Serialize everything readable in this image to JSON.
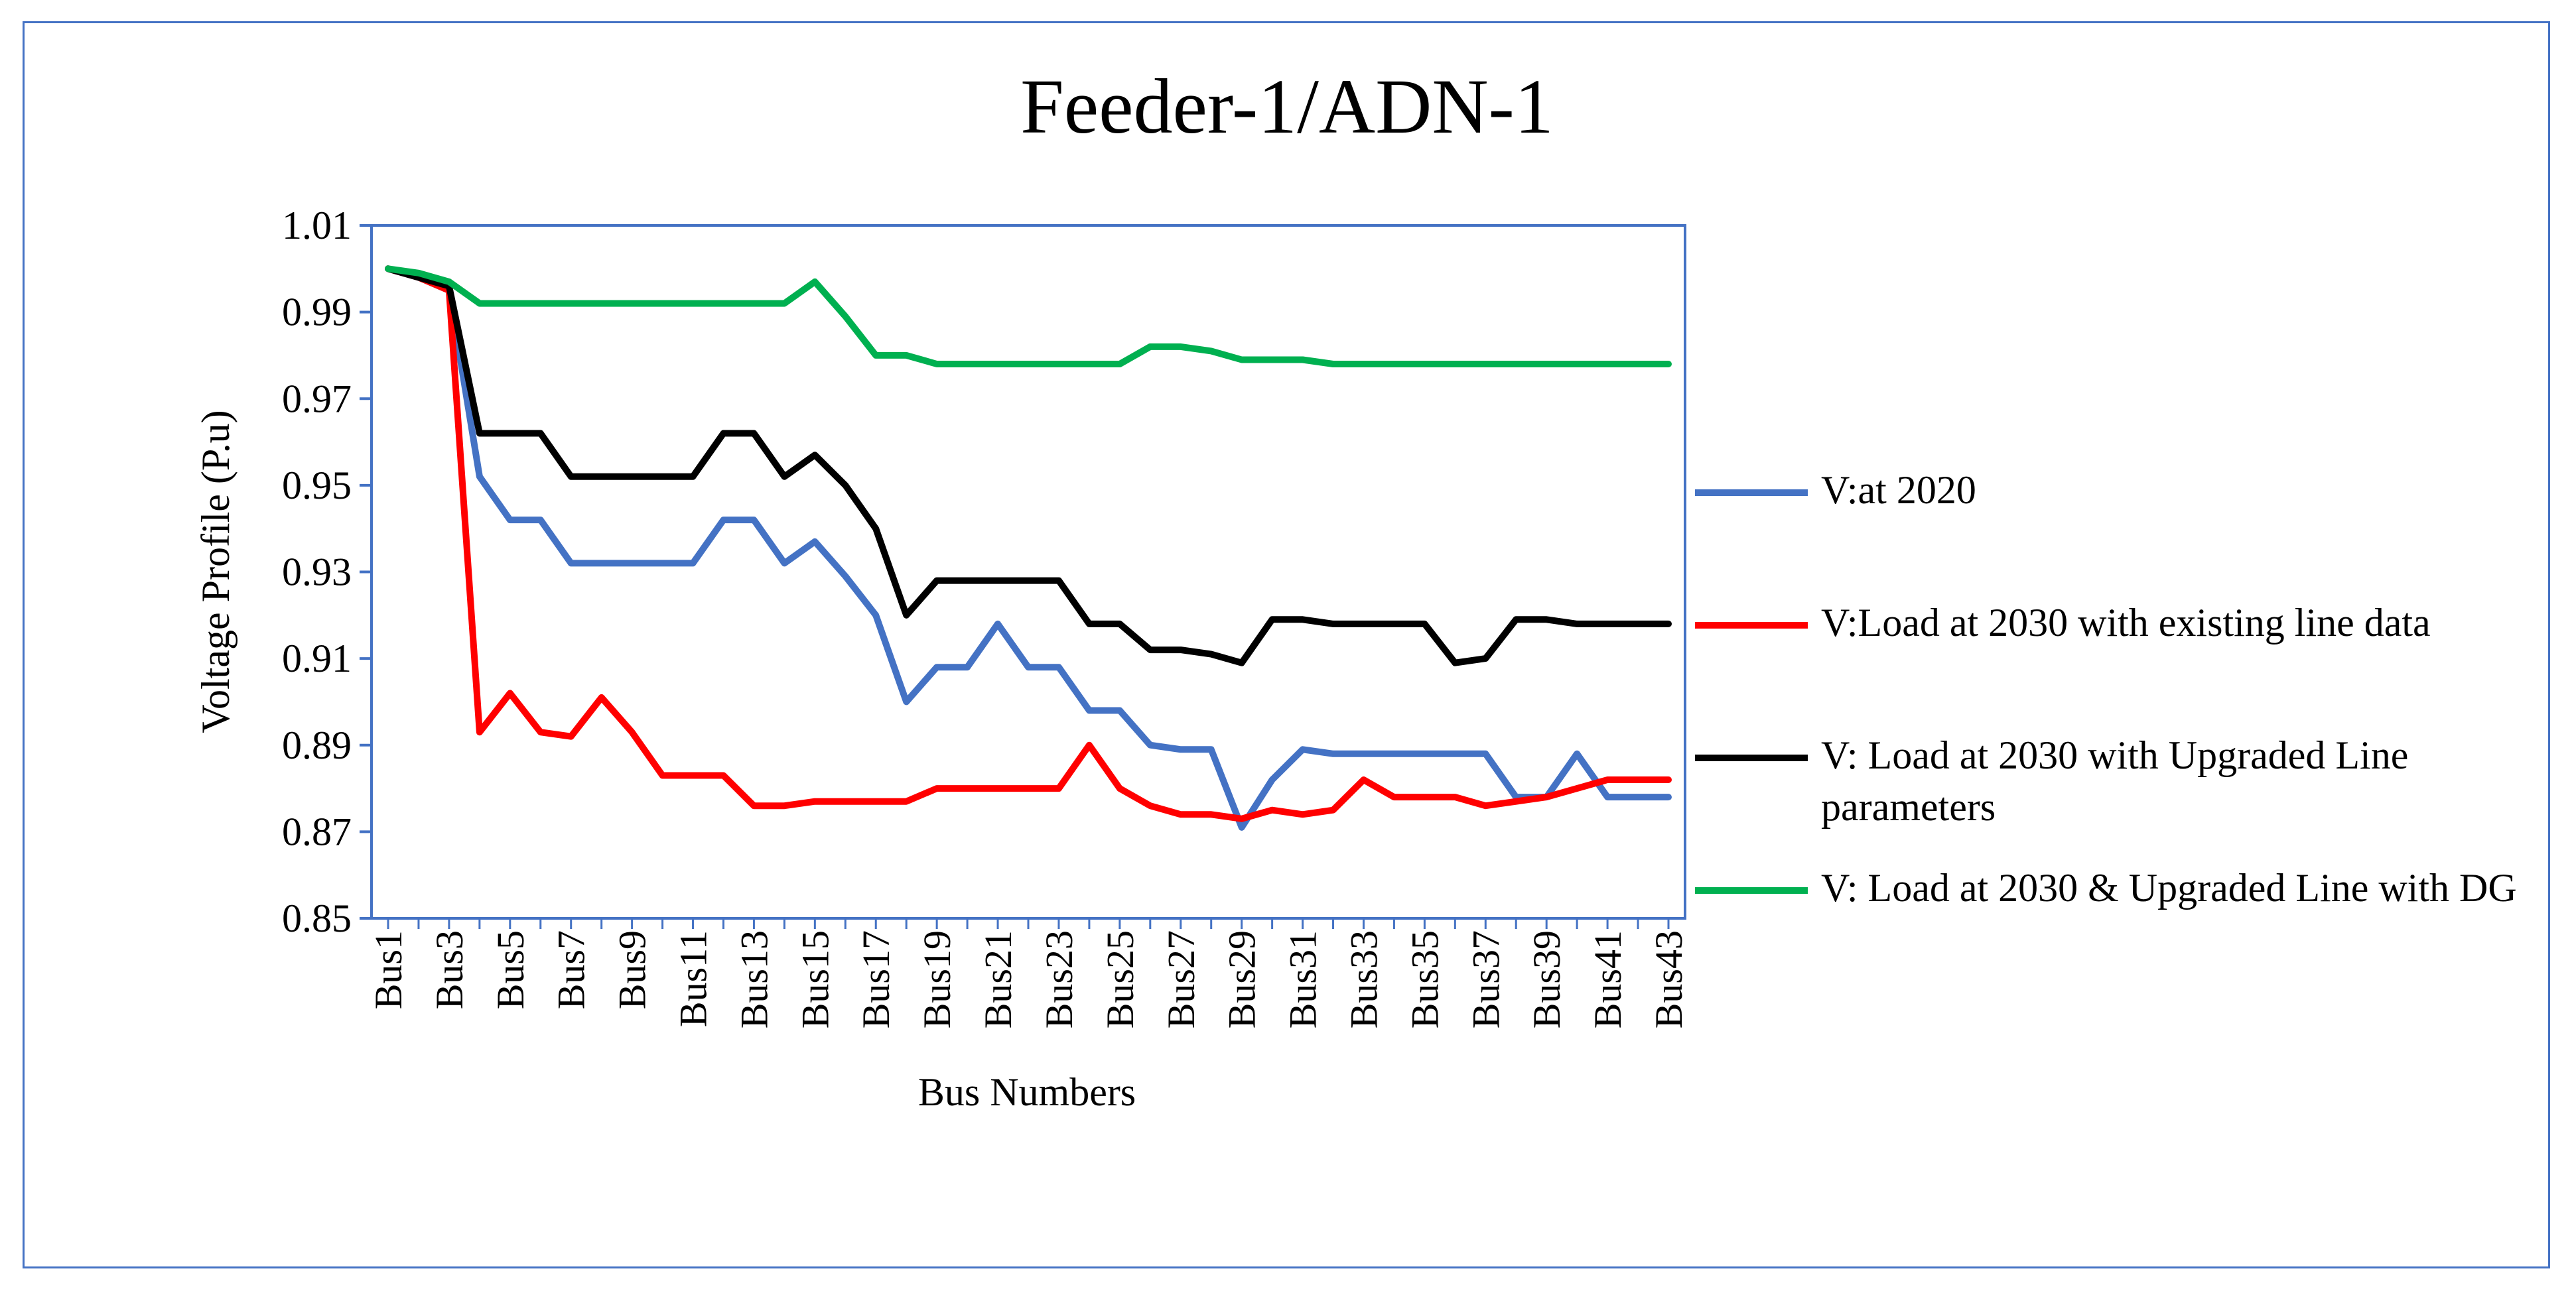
{
  "chart_data": {
    "type": "line",
    "title": "Feeder-1/ADN-1",
    "xlabel": "Bus Numbers",
    "ylabel": "Voltage Profile (P.u)",
    "ylim": [
      0.85,
      1.01
    ],
    "yticks": [
      "0.85",
      "0.87",
      "0.89",
      "0.91",
      "0.93",
      "0.95",
      "0.97",
      "0.99",
      "1.01"
    ],
    "categories": [
      "Bus1",
      "Bus2",
      "Bus3",
      "Bus4",
      "Bus5",
      "Bus6",
      "Bus7",
      "Bus8",
      "Bus9",
      "Bus10",
      "Bus11",
      "Bus12",
      "Bus13",
      "Bus14",
      "Bus15",
      "Bus16",
      "Bus17",
      "Bus18",
      "Bus19",
      "Bus20",
      "Bus21",
      "Bus22",
      "Bus23",
      "Bus24",
      "Bus25",
      "Bus26",
      "Bus27",
      "Bus28",
      "Bus29",
      "Bus30",
      "Bus31",
      "Bus32",
      "Bus33",
      "Bus34",
      "Bus35",
      "Bus36",
      "Bus37",
      "Bus38",
      "Bus39",
      "Bus40",
      "Bus41",
      "Bus42",
      "Bus43"
    ],
    "xtick_labels": [
      "Bus1",
      "Bus3",
      "Bus5",
      "Bus7",
      "Bus9",
      "Bus11",
      "Bus13",
      "Bus15",
      "Bus17",
      "Bus19",
      "Bus21",
      "Bus23",
      "Bus25",
      "Bus27",
      "Bus29",
      "Bus31",
      "Bus33",
      "Bus35",
      "Bus37",
      "Bus39",
      "Bus41",
      "Bus43"
    ],
    "legend_position": "right",
    "series": [
      {
        "name": "V:at 2020",
        "color": "#4472c4",
        "values": [
          1.0,
          0.998,
          0.995,
          0.952,
          0.942,
          0.942,
          0.932,
          0.932,
          0.932,
          0.932,
          0.932,
          0.942,
          0.942,
          0.932,
          0.937,
          0.929,
          0.92,
          0.9,
          0.908,
          0.908,
          0.918,
          0.908,
          0.908,
          0.898,
          0.898,
          0.89,
          0.889,
          0.889,
          0.871,
          0.882,
          0.889,
          0.888,
          0.888,
          0.888,
          0.888,
          0.888,
          0.888,
          0.878,
          0.878,
          0.888,
          0.878,
          0.878,
          0.878
        ]
      },
      {
        "name": "V:Load at 2030 with existing line data",
        "color": "#ff0000",
        "values": [
          1.0,
          0.998,
          0.995,
          0.893,
          0.902,
          0.893,
          0.892,
          0.901,
          0.893,
          0.883,
          0.883,
          0.883,
          0.876,
          0.876,
          0.877,
          0.877,
          0.877,
          0.877,
          0.88,
          0.88,
          0.88,
          0.88,
          0.88,
          0.89,
          0.88,
          0.876,
          0.874,
          0.874,
          0.873,
          0.875,
          0.874,
          0.875,
          0.882,
          0.878,
          0.878,
          0.878,
          0.876,
          0.877,
          0.878,
          0.88,
          0.882,
          0.882,
          0.882
        ]
      },
      {
        "name": "V: Load at 2030 with Upgraded Line parameters",
        "color": "#000000",
        "values": [
          1.0,
          0.998,
          0.996,
          0.962,
          0.962,
          0.962,
          0.952,
          0.952,
          0.952,
          0.952,
          0.952,
          0.962,
          0.962,
          0.952,
          0.957,
          0.95,
          0.94,
          0.92,
          0.928,
          0.928,
          0.928,
          0.928,
          0.928,
          0.918,
          0.918,
          0.912,
          0.912,
          0.911,
          0.909,
          0.919,
          0.919,
          0.918,
          0.918,
          0.918,
          0.918,
          0.909,
          0.91,
          0.919,
          0.919,
          0.918,
          0.918,
          0.918,
          0.918
        ]
      },
      {
        "name": "V: Load at 2030 & Upgraded Line with DG",
        "color": "#00b050",
        "values": [
          1.0,
          0.999,
          0.997,
          0.992,
          0.992,
          0.992,
          0.992,
          0.992,
          0.992,
          0.992,
          0.992,
          0.992,
          0.992,
          0.992,
          0.997,
          0.989,
          0.98,
          0.98,
          0.978,
          0.978,
          0.978,
          0.978,
          0.978,
          0.978,
          0.978,
          0.982,
          0.982,
          0.981,
          0.979,
          0.979,
          0.979,
          0.978,
          0.978,
          0.978,
          0.978,
          0.978,
          0.978,
          0.978,
          0.978,
          0.978,
          0.978,
          0.978,
          0.978
        ]
      }
    ]
  }
}
